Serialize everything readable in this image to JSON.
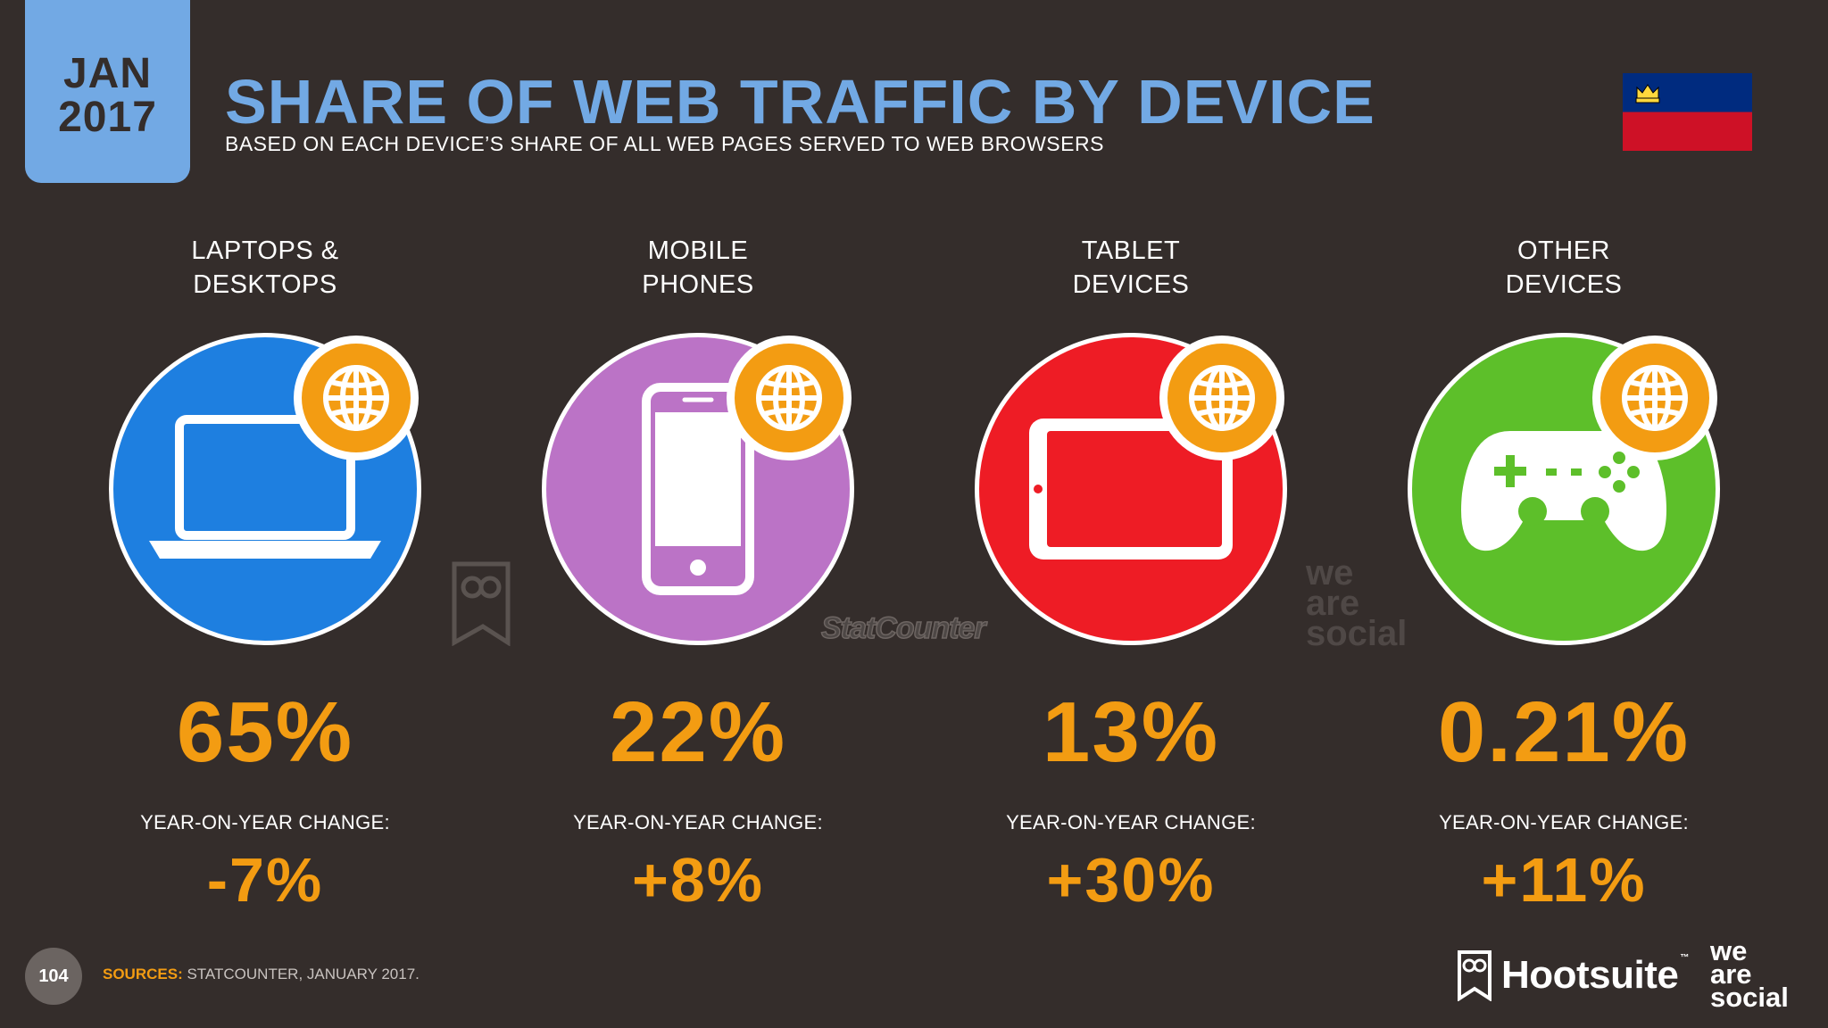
{
  "header": {
    "month": "JAN",
    "year": "2017",
    "title": "SHARE OF WEB TRAFFIC BY DEVICE",
    "subtitle": "BASED ON EACH DEVICE’S SHARE OF ALL WEB PAGES SERVED TO WEB BROWSERS"
  },
  "flag": {
    "name": "liechtenstein-flag",
    "colors": [
      "#002b7f",
      "#ce1126"
    ],
    "crown": "#ffd83d"
  },
  "yoy_label": "YEAR-ON-YEAR CHANGE:",
  "devices": [
    {
      "label_line1": "LAPTOPS &",
      "label_line2": "DESKTOPS",
      "share": "65%",
      "yoy": "-7%",
      "color": "#1e7fe0",
      "icon": "laptop-icon"
    },
    {
      "label_line1": "MOBILE",
      "label_line2": "PHONES",
      "share": "22%",
      "yoy": "+8%",
      "color": "#bb73c6",
      "icon": "mobile-phone-icon"
    },
    {
      "label_line1": "TABLET",
      "label_line2": "DEVICES",
      "share": "13%",
      "yoy": "+30%",
      "color": "#ee1c25",
      "icon": "tablet-icon"
    },
    {
      "label_line1": "OTHER",
      "label_line2": "DEVICES",
      "share": "0.21%",
      "yoy": "+11%",
      "color": "#5dbf2a",
      "icon": "gamepad-icon"
    }
  ],
  "watermarks": {
    "statcounter": "StatCounter",
    "we": "we",
    "are": "are",
    "social": "social"
  },
  "footer": {
    "page_number": "104",
    "sources_label": "SOURCES:",
    "sources_text": "STATCOUNTER, JANUARY 2017.",
    "hootsuite": "Hootsuite",
    "tm": "™",
    "we": "we",
    "are": "are",
    "social": "social"
  },
  "colors": {
    "background": "#342d2b",
    "title": "#72a9e4",
    "accent": "#f39c12"
  }
}
